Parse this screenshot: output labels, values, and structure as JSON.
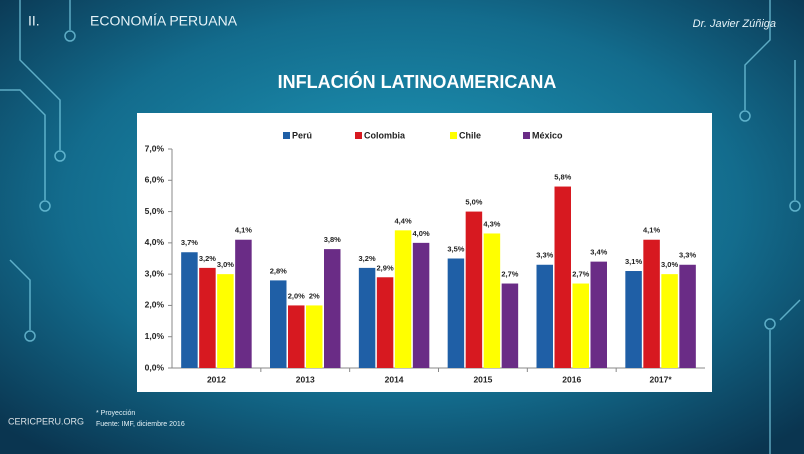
{
  "slide": {
    "section": "II.",
    "heading": "ECONOMÍA PERUANA",
    "author": "Dr. Javier Zúñiga",
    "footnote": "* Proyección",
    "source": "Fuente: IMF, diciembre 2016",
    "watermark": "CERICPERU.ORG"
  },
  "chart_data": {
    "type": "bar",
    "title": "INFLACIÓN LATINOAMERICANA",
    "categories": [
      "2012",
      "2013",
      "2014",
      "2015",
      "2016",
      "2017*"
    ],
    "series": [
      {
        "name": "Perú",
        "color": "#1f5fa6",
        "values": [
          3.7,
          2.8,
          3.2,
          3.5,
          3.3,
          3.1
        ],
        "value_labels": [
          "3,7%",
          "2,8%",
          "3,2%",
          "3,5%",
          "3,3%",
          "3,1%"
        ]
      },
      {
        "name": "Colombia",
        "color": "#d71920",
        "values": [
          3.2,
          2.0,
          2.9,
          5.0,
          5.8,
          4.1
        ],
        "value_labels": [
          "3,2%",
          "2,0%",
          "2,9%",
          "5,0%",
          "5,8%",
          "4,1%"
        ]
      },
      {
        "name": "Chile",
        "color": "#ffff00",
        "values": [
          3.0,
          2,
          4.4,
          4.3,
          2.7,
          3.0
        ],
        "value_labels": [
          "3,0%",
          "2%",
          "4,4%",
          "4,3%",
          "2,7%",
          "3,0%"
        ]
      },
      {
        "name": "México",
        "color": "#6a2c86",
        "values": [
          4.1,
          3.8,
          4.0,
          2.7,
          3.4,
          3.3
        ],
        "value_labels": [
          "4,1%",
          "3,8%",
          "4,0%",
          "2,7%",
          "3,4%",
          "3,3%"
        ]
      }
    ],
    "ylim": [
      0,
      7
    ],
    "yticks": [
      {
        "value": 0,
        "label": "0,0%"
      },
      {
        "value": 1,
        "label": "1,0%"
      },
      {
        "value": 2,
        "label": "2,0%"
      },
      {
        "value": 3,
        "label": "3,0%"
      },
      {
        "value": 4,
        "label": "4,0%"
      },
      {
        "value": 5,
        "label": "5,0%"
      },
      {
        "value": 6,
        "label": "6,0%"
      },
      {
        "value": 7,
        "label": "7,0%"
      }
    ],
    "grid": false,
    "legend": "top"
  }
}
